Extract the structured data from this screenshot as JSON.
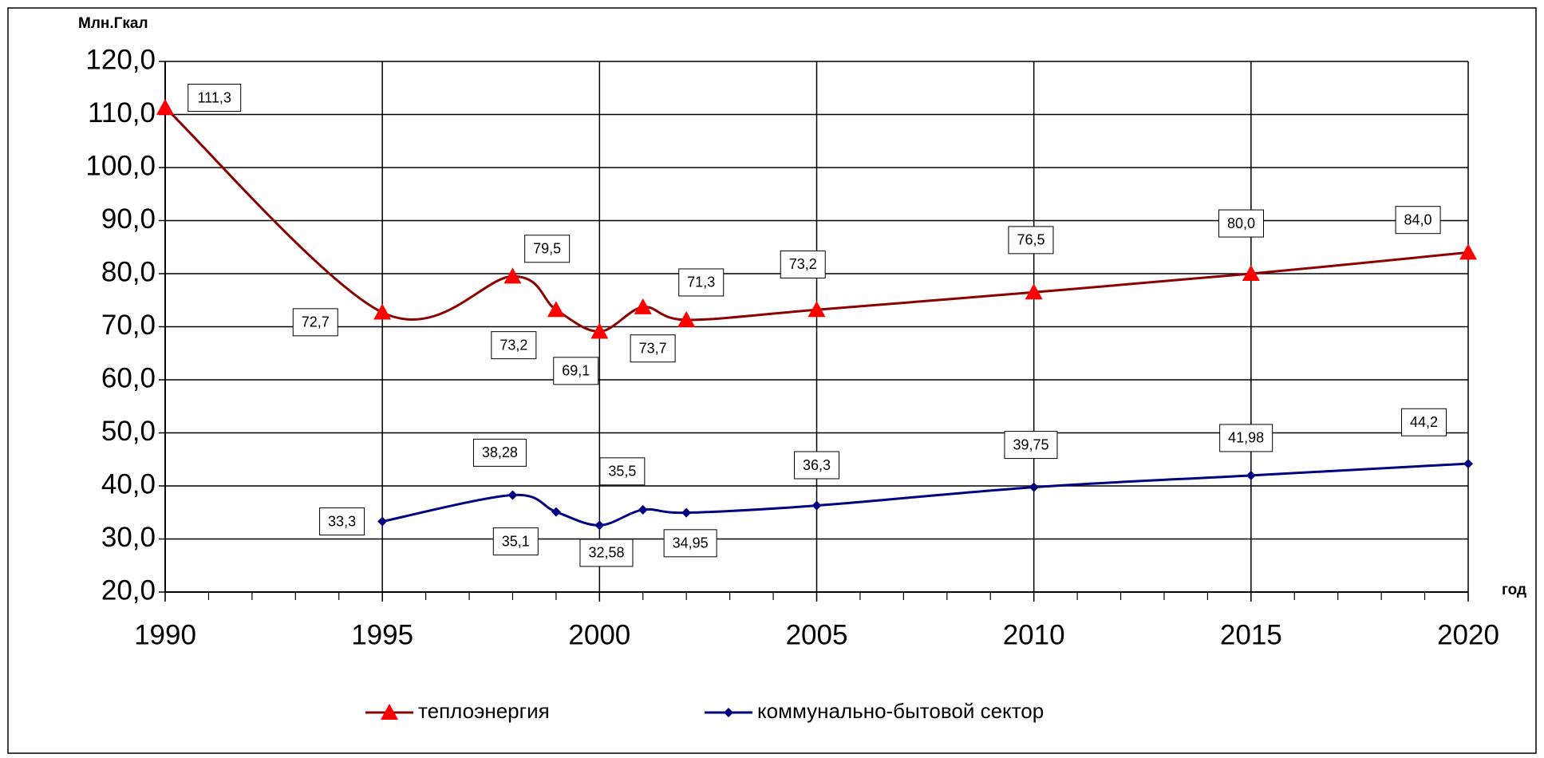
{
  "chart_data": {
    "type": "line",
    "y_label": "Млн.Гкал",
    "x_label": "год",
    "xlim": [
      1990,
      2020
    ],
    "xticks": [
      1990,
      1995,
      2000,
      2005,
      2010,
      2015,
      2020
    ],
    "ylim": [
      20,
      120
    ],
    "yticks": [
      {
        "value": 20,
        "label": "20,0"
      },
      {
        "value": 30,
        "label": "30,0"
      },
      {
        "value": 40,
        "label": "40,0"
      },
      {
        "value": 50,
        "label": "50,0"
      },
      {
        "value": 60,
        "label": "60,0"
      },
      {
        "value": 70,
        "label": "70,0"
      },
      {
        "value": 80,
        "label": "80,0"
      },
      {
        "value": 90,
        "label": "90,0"
      },
      {
        "value": 100,
        "label": "100,0"
      },
      {
        "value": 110,
        "label": "110,0"
      },
      {
        "value": 120,
        "label": "120,0"
      }
    ],
    "grid": true,
    "legend": "bottom",
    "series": [
      {
        "name": "теплоэнергия",
        "color": "#8b0000",
        "marker": "triangle",
        "marker_color": "#ff0000",
        "x": [
          1990,
          1995,
          1998,
          1999,
          2000,
          2001,
          2002,
          2005,
          2010,
          2015,
          2020
        ],
        "values": [
          111.3,
          72.7,
          79.5,
          73.2,
          69.1,
          73.7,
          71.3,
          73.2,
          76.5,
          80.0,
          84.0
        ],
        "value_labels": [
          "111,3",
          "72,7",
          "79,5",
          "73,2",
          "69,1",
          "73,7",
          "71,3",
          "73,2",
          "76,5",
          "80,0",
          "84,0"
        ]
      },
      {
        "name": "коммунально-бытовой сектор",
        "color": "#000080",
        "marker": "diamond",
        "marker_color": "#000080",
        "x": [
          1995,
          1998,
          1999,
          2000,
          2001,
          2002,
          2005,
          2010,
          2015,
          2020
        ],
        "values": [
          33.3,
          38.28,
          35.1,
          32.58,
          35.5,
          34.95,
          36.3,
          39.75,
          41.98,
          44.2
        ],
        "value_labels": [
          "33,3",
          "38,28",
          "35,1",
          "32,58",
          "35,5",
          "34,95",
          "36,3",
          "39,75",
          "41,98",
          "44,2"
        ]
      }
    ]
  }
}
